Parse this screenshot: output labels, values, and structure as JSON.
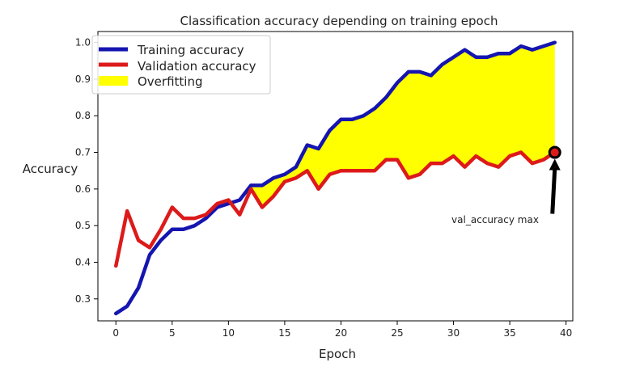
{
  "chart_data": {
    "type": "line",
    "title": "Classification accuracy depending on training epoch",
    "xlabel": "Epoch",
    "ylabel": "Accuracy",
    "xlim": [
      -1.6,
      40.6
    ],
    "ylim": [
      0.24,
      1.03
    ],
    "xticks": [
      0,
      5,
      10,
      15,
      20,
      25,
      30,
      35,
      40
    ],
    "yticks": [
      0.3,
      0.4,
      0.5,
      0.6,
      0.7,
      0.8,
      0.9,
      1.0
    ],
    "grid": false,
    "legend_position": "top-left",
    "x": [
      0,
      1,
      2,
      3,
      4,
      5,
      6,
      7,
      8,
      9,
      10,
      11,
      12,
      13,
      14,
      15,
      16,
      17,
      18,
      19,
      20,
      21,
      22,
      23,
      24,
      25,
      26,
      27,
      28,
      29,
      30,
      31,
      32,
      33,
      34,
      35,
      36,
      37,
      38,
      39
    ],
    "series": [
      {
        "name": "Training accuracy",
        "color": "#1515b0",
        "values": [
          0.26,
          0.28,
          0.33,
          0.42,
          0.46,
          0.49,
          0.49,
          0.5,
          0.52,
          0.55,
          0.56,
          0.57,
          0.61,
          0.61,
          0.63,
          0.64,
          0.66,
          0.72,
          0.71,
          0.76,
          0.79,
          0.79,
          0.8,
          0.82,
          0.85,
          0.89,
          0.92,
          0.92,
          0.91,
          0.94,
          0.96,
          0.98,
          0.96,
          0.96,
          0.97,
          0.97,
          0.99,
          0.98,
          0.99,
          1.0
        ]
      },
      {
        "name": "Validation accuracy",
        "color": "#dd1a1a",
        "values": [
          0.39,
          0.54,
          0.46,
          0.44,
          0.49,
          0.55,
          0.52,
          0.52,
          0.53,
          0.56,
          0.57,
          0.53,
          0.6,
          0.55,
          0.58,
          0.62,
          0.63,
          0.65,
          0.6,
          0.64,
          0.65,
          0.65,
          0.65,
          0.65,
          0.68,
          0.68,
          0.63,
          0.64,
          0.67,
          0.67,
          0.69,
          0.66,
          0.69,
          0.67,
          0.66,
          0.69,
          0.7,
          0.67,
          0.68,
          0.7
        ]
      }
    ],
    "fill_between": {
      "name": "Overfitting",
      "color": "#ffff00",
      "from_x": 12
    },
    "annotation": {
      "text": "val_accuracy max",
      "point_x": 39,
      "point_y": 0.7
    }
  }
}
